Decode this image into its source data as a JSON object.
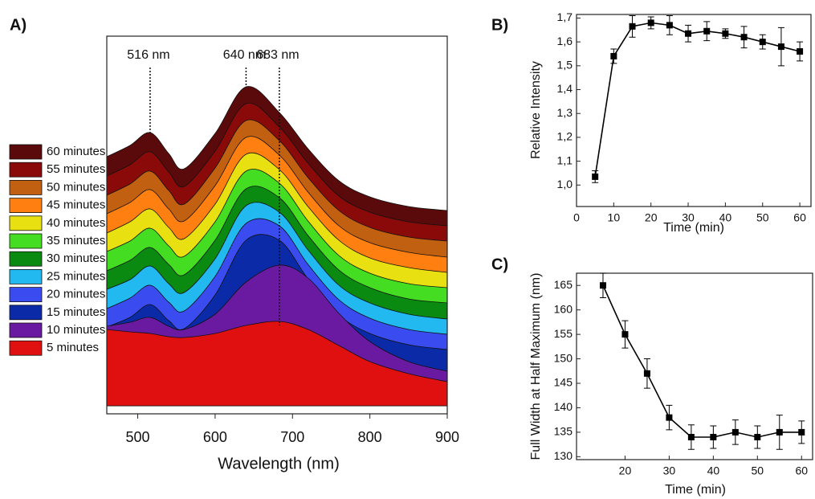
{
  "chart_data": [
    {
      "type": "area",
      "panel_label": "A)",
      "xlabel": "Wavelength (nm)",
      "x": [
        460,
        490,
        516,
        540,
        560,
        600,
        640,
        683,
        720,
        760,
        800,
        850,
        900
      ],
      "xlim": [
        460,
        900
      ],
      "xticks": [
        500,
        600,
        700,
        800,
        900
      ],
      "annotations": [
        {
          "x": 516,
          "label": "516 nm"
        },
        {
          "x": 640,
          "label": "640 nm"
        },
        {
          "x": 683,
          "label": "683 nm"
        }
      ],
      "series": [
        {
          "name": "5 minutes",
          "color": "#e01010",
          "values": [
            95,
            92,
            90,
            86,
            85,
            90,
            100,
            105,
            95,
            75,
            55,
            40,
            30
          ]
        },
        {
          "name": "10 minutes",
          "color": "#6a1aa0",
          "values": [
            80,
            85,
            91,
            80,
            76,
            95,
            135,
            156,
            140,
            96,
            61,
            36,
            24
          ]
        },
        {
          "name": "15 minutes",
          "color": "#0a2aa8",
          "values": [
            60,
            72,
            88,
            68,
            58,
            100,
            168,
            168,
            120,
            75,
            52,
            38,
            32
          ]
        },
        {
          "name": "20 minutes",
          "color": "#3a4cf0",
          "values": [
            64,
            77,
            93,
            72,
            61,
            104,
            170,
            167,
            119,
            75,
            52,
            38,
            32
          ]
        },
        {
          "name": "25 minutes",
          "color": "#22b8f0",
          "values": [
            69,
            81,
            98,
            76,
            65,
            107,
            173,
            165,
            118,
            74,
            52,
            38,
            32
          ]
        },
        {
          "name": "30 minutes",
          "color": "#0a8a10",
          "values": [
            73,
            86,
            102,
            81,
            68,
            111,
            175,
            164,
            117,
            74,
            52,
            38,
            33
          ]
        },
        {
          "name": "35 minutes",
          "color": "#44dd22",
          "values": [
            78,
            91,
            107,
            85,
            72,
            115,
            178,
            163,
            116,
            73,
            51,
            38,
            33
          ]
        },
        {
          "name": "40 minutes",
          "color": "#e8e010",
          "values": [
            82,
            96,
            112,
            89,
            75,
            118,
            180,
            161,
            115,
            73,
            51,
            39,
            33
          ]
        },
        {
          "name": "45 minutes",
          "color": "#ff8010",
          "values": [
            87,
            101,
            117,
            93,
            78,
            122,
            182,
            160,
            114,
            72,
            51,
            39,
            33
          ]
        },
        {
          "name": "50 minutes",
          "color": "#c06010",
          "values": [
            91,
            105,
            121,
            97,
            80,
            125,
            184,
            159,
            113,
            72,
            51,
            39,
            34
          ]
        },
        {
          "name": "55 minutes",
          "color": "#8a0a0a",
          "values": [
            96,
            110,
            126,
            101,
            83,
            127,
            186,
            157,
            112,
            71,
            51,
            39,
            34
          ]
        },
        {
          "name": "60 minutes",
          "color": "#5a0a0a",
          "values": [
            101,
            115,
            131,
            105,
            86,
            130,
            188,
            156,
            111,
            71,
            51,
            39,
            34
          ]
        }
      ]
    },
    {
      "type": "line",
      "panel_label": "B)",
      "xlabel": "Time (min)",
      "ylabel": "Relative Intensity",
      "color": "#000000",
      "x": [
        5,
        10,
        15,
        20,
        25,
        30,
        35,
        40,
        45,
        50,
        55,
        60
      ],
      "values": [
        1.035,
        1.54,
        1.665,
        1.68,
        1.67,
        1.635,
        1.645,
        1.635,
        1.62,
        1.6,
        1.58,
        1.56
      ],
      "errors": [
        0.025,
        0.03,
        0.045,
        0.025,
        0.04,
        0.035,
        0.04,
        0.02,
        0.045,
        0.03,
        0.08,
        0.04
      ],
      "xlim": [
        0,
        63
      ],
      "xticks": [
        0,
        10,
        20,
        30,
        40,
        50,
        60
      ],
      "ylim": [
        0.91,
        1.715
      ],
      "yticks": [
        {
          "value": 1.0,
          "label": "1,0"
        },
        {
          "value": 1.1,
          "label": "1,1"
        },
        {
          "value": 1.2,
          "label": "1,2"
        },
        {
          "value": 1.3,
          "label": "1,3"
        },
        {
          "value": 1.4,
          "label": "1,4"
        },
        {
          "value": 1.5,
          "label": "1,5"
        },
        {
          "value": 1.6,
          "label": "1,6"
        },
        {
          "value": 1.7,
          "label": "1,7"
        }
      ]
    },
    {
      "type": "line",
      "panel_label": "C)",
      "xlabel": "Time (min)",
      "ylabel": "Full Width at Half Maximum (nm)",
      "color": "#000000",
      "x": [
        15,
        20,
        25,
        30,
        35,
        40,
        45,
        50,
        55,
        60
      ],
      "values": [
        165,
        155,
        147,
        138,
        134,
        134,
        135,
        134,
        135,
        135
      ],
      "errors": [
        2.5,
        2.8,
        3,
        2.5,
        2.5,
        2.3,
        2.5,
        2.3,
        3.5,
        2.3
      ],
      "xlim": [
        9,
        62.5
      ],
      "xticks": [
        20,
        30,
        40,
        50,
        60
      ],
      "ylim": [
        129.4,
        167.5
      ],
      "yticks": [
        130,
        135,
        140,
        145,
        150,
        155,
        160,
        165
      ]
    }
  ]
}
